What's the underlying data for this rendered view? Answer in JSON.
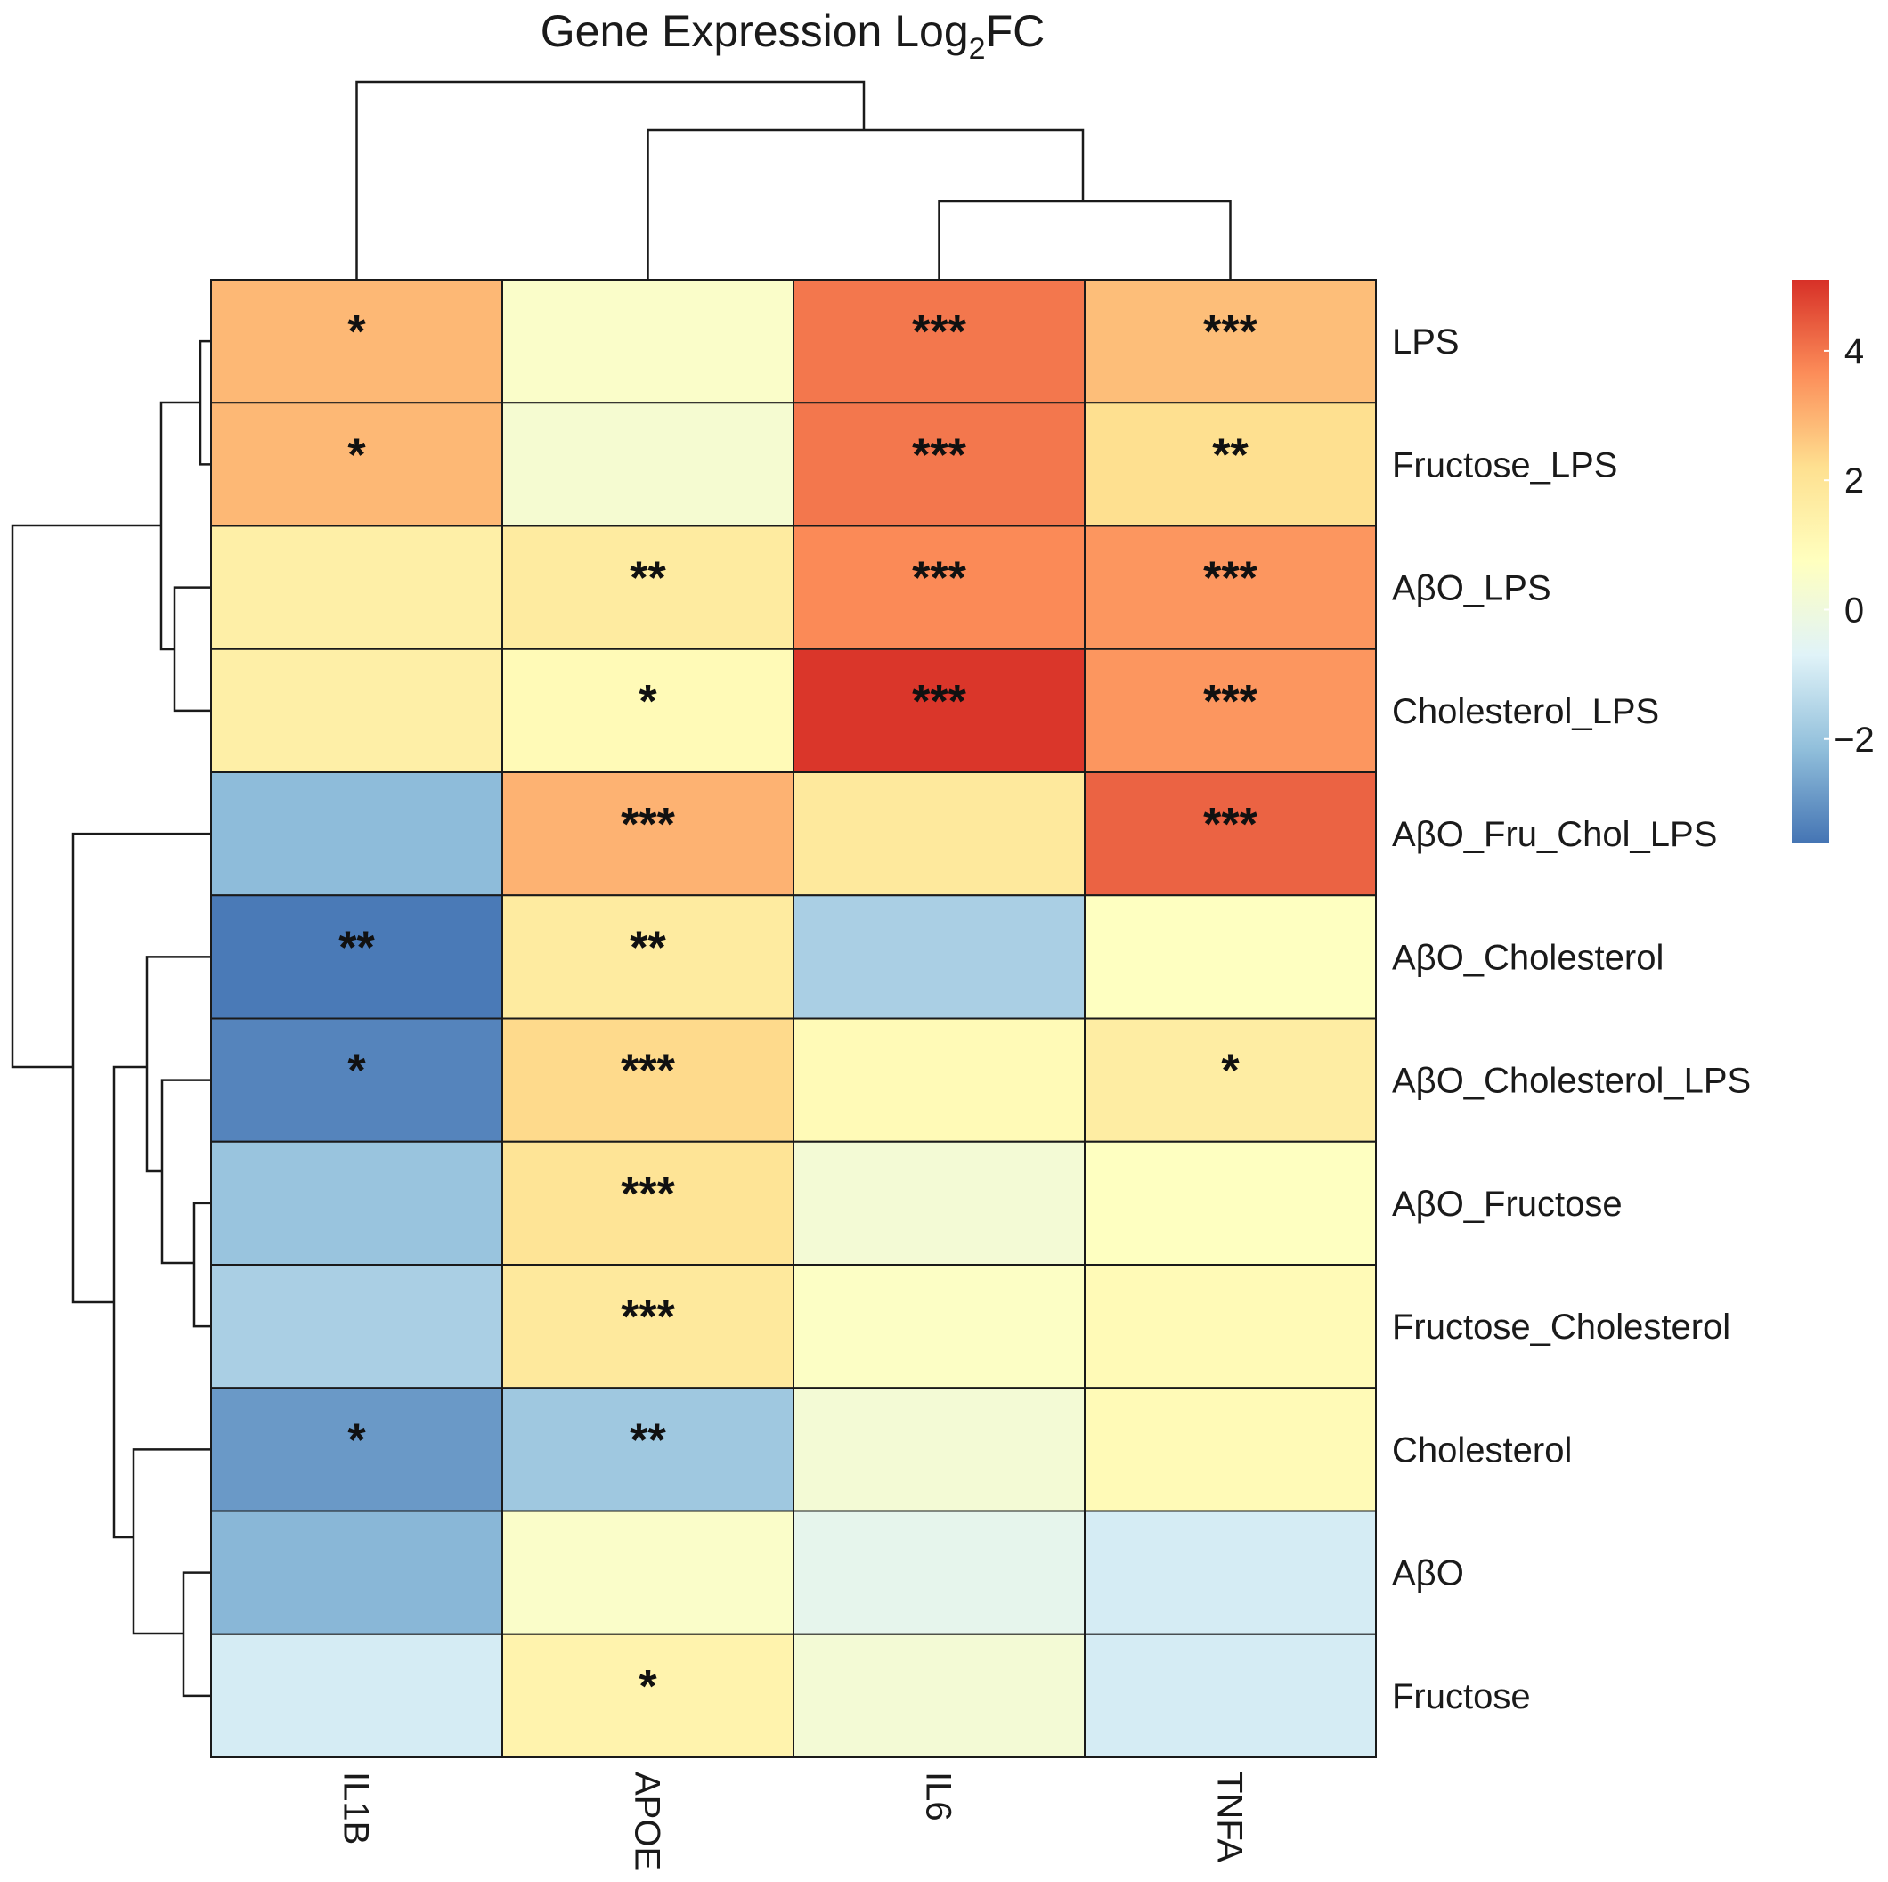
{
  "chart_data": {
    "type": "heatmap",
    "title": {
      "prefix": "Gene Expression Log",
      "subscript": "2",
      "suffix": "FC"
    },
    "columns": [
      "IL1B",
      "APOE",
      "IL6",
      "TNFA"
    ],
    "rows": [
      "LPS",
      "Fructose_LPS",
      "AβO_LPS",
      "Cholesterol_LPS",
      "AβO_Fru_Chol_LPS",
      "AβO_Cholesterol",
      "AβO_Cholesterol_LPS",
      "AβO_Fructose",
      "Fructose_Cholesterol",
      "Cholesterol",
      "AβO",
      "Fructose"
    ],
    "values": [
      [
        2.9,
        0.5,
        4.0,
        2.8
      ],
      [
        2.9,
        0.3,
        4.0,
        2.2
      ],
      [
        1.5,
        1.7,
        3.7,
        3.5
      ],
      [
        1.5,
        1.0,
        5.0,
        3.5
      ],
      [
        -2.2,
        3.0,
        1.8,
        4.3
      ],
      [
        -3.5,
        1.7,
        -1.7,
        0.7
      ],
      [
        -3.3,
        2.3,
        1.0,
        1.6
      ],
      [
        -2.0,
        2.0,
        0.2,
        0.7
      ],
      [
        -1.7,
        1.8,
        0.6,
        1.0
      ],
      [
        -2.9,
        -1.9,
        0.2,
        1.0
      ],
      [
        -2.3,
        0.5,
        -0.4,
        -0.9
      ],
      [
        -0.9,
        1.3,
        0.2,
        -0.9
      ]
    ],
    "significance": [
      [
        "*",
        "",
        "***",
        "***"
      ],
      [
        "*",
        "",
        "***",
        "**"
      ],
      [
        "",
        "**",
        "***",
        "***"
      ],
      [
        "",
        "*",
        "***",
        "***"
      ],
      [
        "",
        "***",
        "",
        "***"
      ],
      [
        "**",
        "**",
        "",
        ""
      ],
      [
        "*",
        "***",
        "",
        "*"
      ],
      [
        "",
        "***",
        "",
        ""
      ],
      [
        "",
        "***",
        "",
        ""
      ],
      [
        "*",
        "**",
        "",
        ""
      ],
      [
        "",
        "",
        "",
        ""
      ],
      [
        "",
        "*",
        "",
        ""
      ]
    ],
    "legend": {
      "min": -3.6,
      "max": 5.1,
      "ticks": [
        {
          "value": 4,
          "label": "4"
        },
        {
          "value": 2,
          "label": "2"
        },
        {
          "value": 0,
          "label": "0"
        },
        {
          "value": -2,
          "label": "−2"
        }
      ],
      "colors": [
        "#4575b4",
        "#91bfdb",
        "#e0f3f8",
        "#ffffbf",
        "#fee090",
        "#fc8d59",
        "#d73027"
      ]
    },
    "row_dendrogram": "left",
    "column_dendrogram": "top"
  }
}
